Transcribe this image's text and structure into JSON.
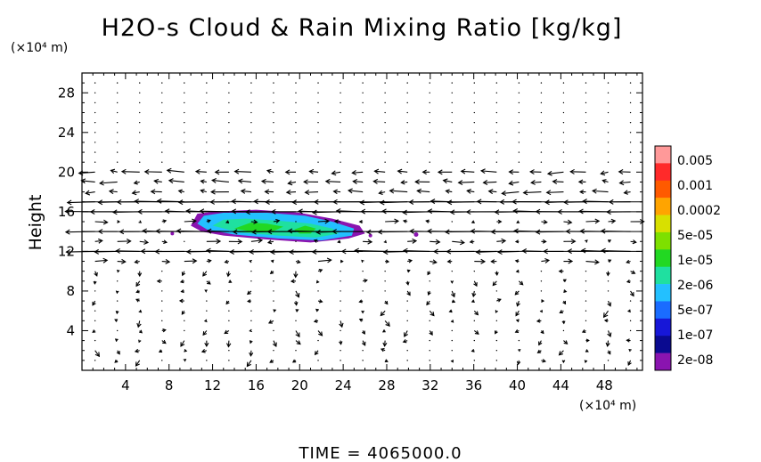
{
  "chart_data": {
    "type": "heatmap",
    "title": "H2O-s Cloud & Rain Mixing Ratio [kg/kg]",
    "ylabel": "Height",
    "y_unit": "(×10⁴ m)",
    "x_unit": "(×10⁴ m)",
    "xlim": [
      0,
      51.5
    ],
    "ylim": [
      0,
      30
    ],
    "x_ticks": [
      "4",
      "8",
      "12",
      "16",
      "20",
      "24",
      "28",
      "32",
      "36",
      "40",
      "44",
      "48"
    ],
    "y_ticks": [
      "4",
      "8",
      "12",
      "16",
      "20",
      "24",
      "28"
    ],
    "x_tick_values": [
      4,
      8,
      12,
      16,
      20,
      24,
      28,
      32,
      36,
      40,
      44,
      48
    ],
    "y_tick_values": [
      4,
      8,
      12,
      16,
      20,
      24,
      28
    ],
    "grid": false,
    "colorbar": {
      "labels": [
        "0.005",
        "0.001",
        "0.0002",
        "5e-05",
        "1e-05",
        "2e-06",
        "5e-07",
        "1e-07",
        "2e-08"
      ],
      "colors": [
        "#ff9999",
        "#ff2a2a",
        "#ff5a00",
        "#ffa400",
        "#d8e000",
        "#7ee000",
        "#22d822",
        "#1fe0a0",
        "#23c0ff",
        "#1a6cff",
        "#1717d8",
        "#0a0a90",
        "#8a14b0"
      ]
    },
    "cloud_regions": [
      {
        "x": [
          10,
          26
        ],
        "y": [
          13,
          16
        ],
        "peak_value": "1e-05"
      },
      {
        "x": [
          30.5,
          31
        ],
        "y": [
          13.5,
          14
        ],
        "peak_value": "2e-08"
      }
    ],
    "wind_vectors": {
      "strong_westward_layers_km": [
        12,
        14,
        16,
        17
      ],
      "note_free": true
    },
    "footer": "TIME = 4065000.0"
  }
}
